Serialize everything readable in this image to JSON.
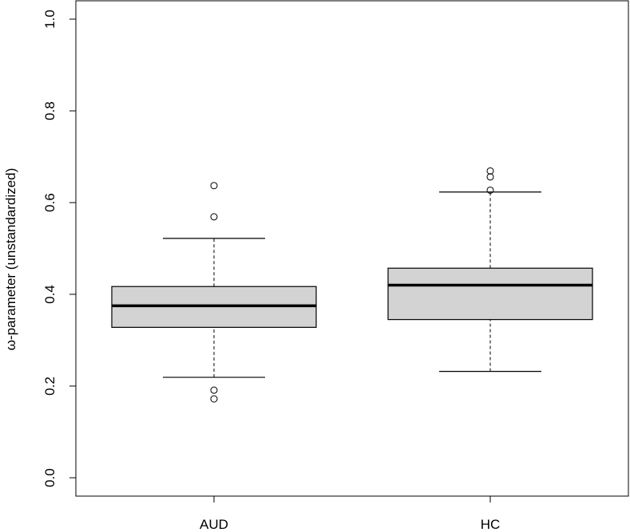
{
  "chart_data": {
    "type": "box",
    "title": "",
    "xlabel": "",
    "ylabel": "ω-parameter (unstandardized)",
    "ylim": [
      -0.04,
      1.04
    ],
    "yticks": [
      "0.0",
      "0.2",
      "0.4",
      "0.6",
      "0.8",
      "1.0"
    ],
    "categories": [
      "AUD",
      "HC"
    ],
    "boxes": [
      {
        "name": "AUD",
        "whisker_low": 0.219,
        "q1": 0.328,
        "median": 0.375,
        "q3": 0.417,
        "whisker_high": 0.522,
        "outliers": [
          0.637,
          0.569,
          0.191,
          0.172
        ]
      },
      {
        "name": "HC",
        "whisker_low": 0.232,
        "q1": 0.345,
        "median": 0.42,
        "q3": 0.457,
        "whisker_high": 0.623,
        "outliers": [
          0.669,
          0.656,
          0.627
        ]
      }
    ],
    "box_fill": "#d3d3d3",
    "grid": false,
    "legend": "none"
  }
}
